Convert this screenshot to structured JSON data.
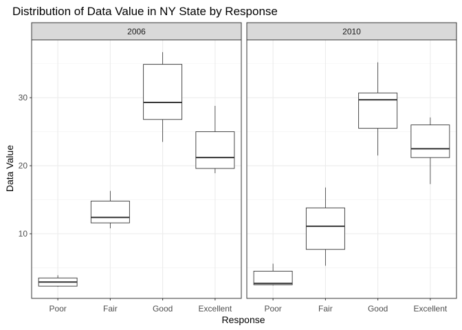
{
  "chart_data": {
    "type": "boxplot",
    "title": "Distribution of Data Value in NY State by Response",
    "xlabel": "Response",
    "ylabel": "Data Value",
    "categories": [
      "Poor",
      "Fair",
      "Good",
      "Excellent"
    ],
    "y_ticks": [
      10,
      20,
      30
    ],
    "ylim": [
      0.5,
      38.5
    ],
    "grid": true,
    "theme": "bw",
    "panels": [
      {
        "label": "2006",
        "boxes": [
          {
            "category": "Poor",
            "min": 2.2,
            "q1": 2.3,
            "median": 2.9,
            "q3": 3.5,
            "max": 3.9
          },
          {
            "category": "Fair",
            "min": 10.8,
            "q1": 11.6,
            "median": 12.4,
            "q3": 14.8,
            "max": 16.3
          },
          {
            "category": "Good",
            "min": 23.5,
            "q1": 26.8,
            "median": 29.3,
            "q3": 34.9,
            "max": 36.7
          },
          {
            "category": "Excellent",
            "min": 18.9,
            "q1": 19.6,
            "median": 21.2,
            "q3": 25.0,
            "max": 28.8
          }
        ]
      },
      {
        "label": "2010",
        "boxes": [
          {
            "category": "Poor",
            "min": 2.4,
            "q1": 2.5,
            "median": 2.7,
            "q3": 4.5,
            "max": 5.6
          },
          {
            "category": "Fair",
            "min": 5.3,
            "q1": 7.7,
            "median": 11.1,
            "q3": 13.8,
            "max": 16.8
          },
          {
            "category": "Good",
            "min": 21.5,
            "q1": 25.5,
            "median": 29.7,
            "q3": 30.7,
            "max": 35.2
          },
          {
            "category": "Excellent",
            "min": 17.3,
            "q1": 21.2,
            "median": 22.5,
            "q3": 26.0,
            "max": 27.1
          }
        ]
      }
    ]
  }
}
